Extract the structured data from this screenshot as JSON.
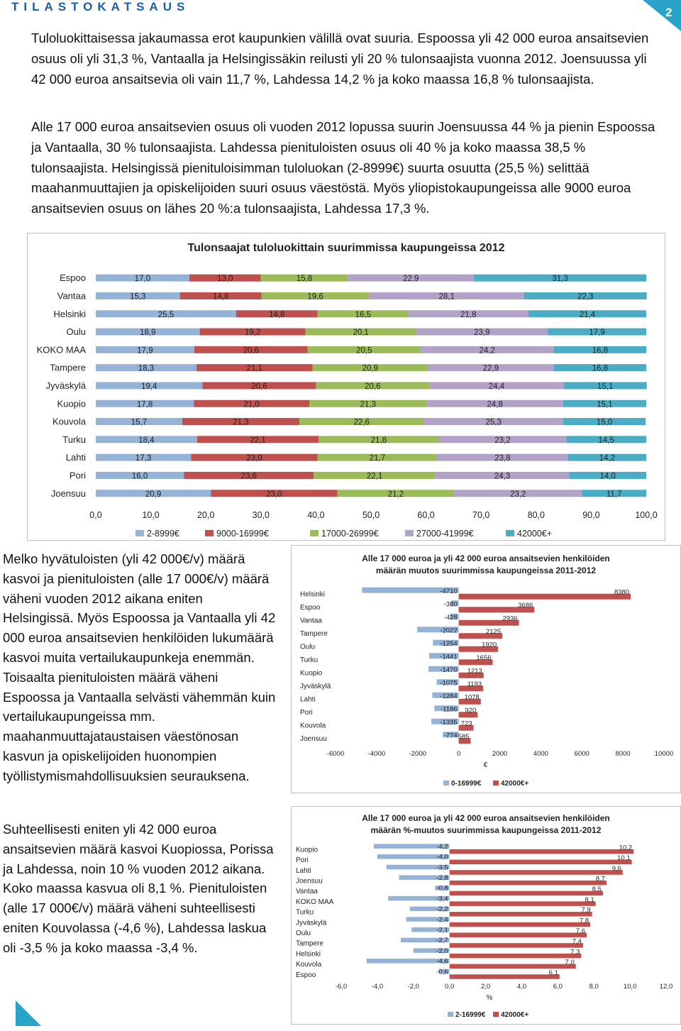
{
  "header": {
    "brand": "TILASTOKATSAUS",
    "page_number": "2"
  },
  "paragraphs": [
    "Tuloluokittaisessa jakaumassa erot kaupunkien välillä ovat suuria. Espoossa yli 42 000 euroa ansaitsevien osuus oli yli 31,3 %, Vantaalla ja Helsingissäkin reilusti yli 20 % tulonsaajista vuonna 2012. Joensuussa yli 42 000 euroa ansaitsevia oli vain 11,7 %, Lahdessa 14,2 % ja koko maassa 16,8 % tulonsaajista.",
    "Alle 17 000 euroa ansaitsevien osuus oli vuoden 2012 lopussa suurin Joensuussa 44 % ja pienin Espoossa ja Vantaalla, 30 % tulonsaajista. Lahdessa pienituloisten osuus oli 40 % ja koko maassa 38,5 % tulonsaajista. Helsingissä pienituloisimman tuloluokan (2-8999€) suurta osuutta (25,5 %) selittää maahanmuuttajien ja opiskelijoiden suuri osuus väestöstä. Myös yliopistokaupungeissa alle 9000 euroa ansaitsevien osuus on lähes 20 %:a tulonsaajista, Lahdessa 17,3 %."
  ],
  "side_texts": [
    "Melko hyvätuloisten (yli 42 000€/v) määrä kasvoi ja pienituloisten (alle 17 000€/v) määrä väheni vuoden 2012 aikana eniten Helsingissä. Myös Espoossa ja Vantaalla yli 42 000 euroa ansaitsevien henkilöiden lukumäärä kasvoi muita vertailukaupunkeja enemmän. Toisaalta pienituloisten määrä väheni Espoossa ja Vantaalla selvästi vähemmän kuin vertailukaupungeissa mm. maahanmuuttajataustaisen väestönosan kasvun ja opiskelijoiden huonompien työllistymismahdollisuuksien seurauksena.",
    "Suhteellisesti eniten yli 42 000 euroa ansaitsevien määrä kasvoi Kuopiossa, Porissa ja Lahdessa, noin 10 % vuoden 2012 aikana. Koko maassa kasvua oli 8,1 %. Pienituloisten (alle 17 000€/v) määrä väheni suhteellisesti eniten Kouvolassa (-4,6 %), Lahdessa laskua oli -3,5 % ja koko maassa -3,4 %."
  ],
  "chart_data": [
    {
      "type": "bar",
      "orientation": "horizontal",
      "stacked": true,
      "title": "Tulonsaajat tuloluokittain suurimmissa kaupungeissa 2012",
      "categories": [
        "Espoo",
        "Vantaa",
        "Helsinki",
        "Oulu",
        "KOKO MAA",
        "Tampere",
        "Jyväskylä",
        "Kuopio",
        "Kouvola",
        "Turku",
        "Lahti",
        "Pori",
        "Joensuu"
      ],
      "category_labels": [
        "Espoo",
        "Vantaa",
        "Helsinki",
        "Oulu",
        "KOKO MAA",
        "Tampere",
        "Jyväskylä",
        "Kuopio",
        "Kouvola",
        "Turku",
        "Lahti",
        "Pori",
        "Joensuu"
      ],
      "series": [
        {
          "name": "2-8999€",
          "color": "#95b3d7",
          "values": [
            17.0,
            15.3,
            25.5,
            18.9,
            17.9,
            18.3,
            19.4,
            17.8,
            15.7,
            18.4,
            17.3,
            16.0,
            20.9
          ],
          "labels": [
            "17,0",
            "15,3",
            "25,5",
            "18,9",
            "17,9",
            "18,3",
            "19,4",
            "17,8",
            "15,7",
            "18,4",
            "17,3",
            "16,0",
            "20,9"
          ]
        },
        {
          "name": "9000-16999€",
          "color": "#c0504d",
          "values": [
            13.0,
            14.8,
            14.8,
            19.2,
            20.6,
            21.1,
            20.6,
            21.0,
            21.3,
            22.1,
            23.0,
            23.6,
            23.0
          ],
          "labels": [
            "13,0",
            "14,8",
            "14,8",
            "19,2",
            "20,6",
            "21,1",
            "20,6",
            "21,0",
            "21,3",
            "22,1",
            "23,0",
            "23,6",
            "23,0"
          ]
        },
        {
          "name": "17000-26999€",
          "color": "#9bbb59",
          "values": [
            15.8,
            19.6,
            16.5,
            20.1,
            20.5,
            20.9,
            20.6,
            21.3,
            22.6,
            21.8,
            21.7,
            22.1,
            21.2
          ],
          "labels": [
            "15,8",
            "19,6",
            "16,5",
            "20,1",
            "20,5",
            "20,9",
            "20,6",
            "21,3",
            "22,6",
            "21,8",
            "21,7",
            "22,1",
            "21,2"
          ]
        },
        {
          "name": "27000-41999€",
          "color": "#b3a2c7",
          "values": [
            22.9,
            28.1,
            21.8,
            23.9,
            24.2,
            22.9,
            24.4,
            24.8,
            25.3,
            23.2,
            23.8,
            24.3,
            23.2
          ],
          "labels": [
            "22,9",
            "28,1",
            "21,8",
            "23,9",
            "24,2",
            "22,9",
            "24,4",
            "24,8",
            "25,3",
            "23,2",
            "23,8",
            "24,3",
            "23,2"
          ]
        },
        {
          "name": "42000€+",
          "color": "#4bacc6",
          "values": [
            31.3,
            22.3,
            21.4,
            17.9,
            16.8,
            16.8,
            15.1,
            15.1,
            15.0,
            14.5,
            14.2,
            14.0,
            11.7
          ],
          "labels": [
            "31,3",
            "22,3",
            "21,4",
            "17,9",
            "16,8",
            "16,8",
            "15,1",
            "15,1",
            "15,0",
            "14,5",
            "14,2",
            "14,0",
            "11,7"
          ]
        }
      ],
      "xlim": [
        0,
        100
      ],
      "x_ticks": [
        "0,0",
        "10,0",
        "20,0",
        "30,0",
        "40,0",
        "50,0",
        "60,0",
        "70,0",
        "80,0",
        "90,0",
        "100,0"
      ],
      "legend": "bottom",
      "grid": false
    },
    {
      "type": "bar",
      "orientation": "horizontal",
      "title": "Alle 17 000 euroa ja yli 42 000 euroa ansaitsevien henkilöiden määrän muutos suurimmissa kaupungeissa 2011-2012",
      "categories": [
        "Helsinki",
        "Espoo",
        "Vantaa",
        "Tampere",
        "Oulu",
        "Turku",
        "Kuopio",
        "Jyväskylä",
        "Lahti",
        "Pori",
        "Kouvola",
        "Joensuu"
      ],
      "series": [
        {
          "name": "0-16999€",
          "color": "#95b3d7",
          "values": [
            -4710,
            -380,
            -428,
            -2022,
            -1254,
            -1441,
            -1470,
            -1075,
            -1284,
            -1186,
            -1335,
            -774
          ],
          "labels": [
            "-4710",
            "-380",
            "-428",
            "-2022",
            "-1254",
            "-1441",
            "-1470",
            "-1075",
            "-1284",
            "-1186",
            "-1335",
            "-774"
          ]
        },
        {
          "name": "42000€+",
          "color": "#c0504d",
          "values": [
            8380,
            3686,
            2936,
            2125,
            1920,
            1656,
            1213,
            1193,
            1078,
            920,
            723,
            585
          ],
          "labels": [
            "8380",
            "3686",
            "2936",
            "2125",
            "1920",
            "1656",
            "1213",
            "1193",
            "1078",
            "920",
            "723",
            "585"
          ]
        }
      ],
      "xlim": [
        -6000,
        10000
      ],
      "x_ticks": [
        "-6000",
        "-4000",
        "-2000",
        "0",
        "2000",
        "4000",
        "6000",
        "8000",
        "10000"
      ],
      "xlabel": "€",
      "legend": "bottom",
      "grid": false
    },
    {
      "type": "bar",
      "orientation": "horizontal",
      "title": "Alle 17 000 euroa ja yli 42 000 euroa ansaitsevien henkilöiden määrän %-muutos suurimmissa kaupungeissa 2011-2012",
      "categories": [
        "Kuopio",
        "Pori",
        "Lahti",
        "Joensuu",
        "Vantaa",
        "KOKO MAA",
        "Turku",
        "Jyväskylä",
        "Oulu",
        "Tampere",
        "Helsinki",
        "Kouvola",
        "Espoo"
      ],
      "series": [
        {
          "name": "2-16999€",
          "color": "#95b3d7",
          "values": [
            -4.2,
            -4.0,
            -3.5,
            -2.8,
            -0.8,
            -3.4,
            -2.2,
            -2.4,
            -2.1,
            -2.7,
            -2.0,
            -4.6,
            -0.6
          ],
          "labels": [
            "-4,2",
            "-4,0",
            "-3,5",
            "-2,8",
            "-0,8",
            "-3,4",
            "-2,2",
            "-2,4",
            "-2,1",
            "-2,7",
            "-2,0",
            "-4,6",
            "-0,6"
          ]
        },
        {
          "name": "42000€+",
          "color": "#c0504d",
          "values": [
            10.2,
            10.1,
            9.6,
            8.7,
            8.5,
            8.1,
            7.9,
            7.8,
            7.6,
            7.4,
            7.3,
            7.0,
            6.1
          ],
          "labels": [
            "10,2",
            "10,1",
            "9,6",
            "8,7",
            "8,5",
            "8,1",
            "7,9",
            "7,8",
            "7,6",
            "7,4",
            "7,3",
            "7,0",
            "6,1"
          ]
        }
      ],
      "xlim": [
        -6,
        12
      ],
      "x_ticks": [
        "-6,0",
        "-4,0",
        "-2,0",
        "0,0",
        "2,0",
        "4,0",
        "6,0",
        "8,0",
        "10,0",
        "12,0"
      ],
      "xlabel": "%",
      "legend": "bottom",
      "grid": false
    }
  ]
}
